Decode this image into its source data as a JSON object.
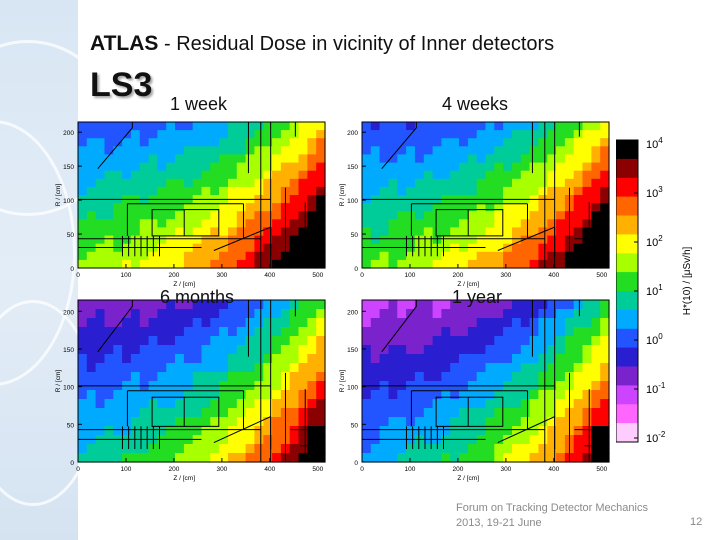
{
  "slide": {
    "title_strong": "ATLAS",
    "title_rest": " - Residual Dose in vicinity of Inner detectors",
    "subtitle": "LS3",
    "footer_line1": "Forum on Tracking Detector Mechanics",
    "footer_line2": "2013, 19-21 June",
    "page_number": "12"
  },
  "maps": [
    {
      "label": "1 week",
      "intensity": 0.0
    },
    {
      "label": "4 weeks",
      "intensity": 0.12
    },
    {
      "label": "6 months",
      "intensity": 0.6
    },
    {
      "label": "1 year",
      "intensity": 0.85
    }
  ],
  "axes": {
    "ylabel": "R / [cm]",
    "xlabel": "Z / [cm]",
    "yticks": [
      "0",
      "50",
      "100",
      "150",
      "200"
    ],
    "xticks": [
      "0",
      "100",
      "200",
      "300",
      "400",
      "500"
    ]
  },
  "colorbar": {
    "label": "H*(10) / [μSv/h]",
    "ticks": [
      {
        "base": "10",
        "exp": "4"
      },
      {
        "base": "10",
        "exp": "3"
      },
      {
        "base": "10",
        "exp": "2"
      },
      {
        "base": "10",
        "exp": "1"
      },
      {
        "base": "10",
        "exp": "0"
      },
      {
        "base": "10",
        "exp": "-1"
      },
      {
        "base": "10",
        "exp": "-2"
      }
    ]
  },
  "colors": {
    "scale_top_to_bottom": [
      "#000000",
      "#8b0000",
      "#ff0000",
      "#ff6600",
      "#ffb000",
      "#ffff00",
      "#a8ff00",
      "#22dd22",
      "#00cc99",
      "#00aaff",
      "#2255ff",
      "#2a1fd0",
      "#7a22cc",
      "#cc44ff",
      "#ff66ff",
      "#ffccff"
    ]
  }
}
